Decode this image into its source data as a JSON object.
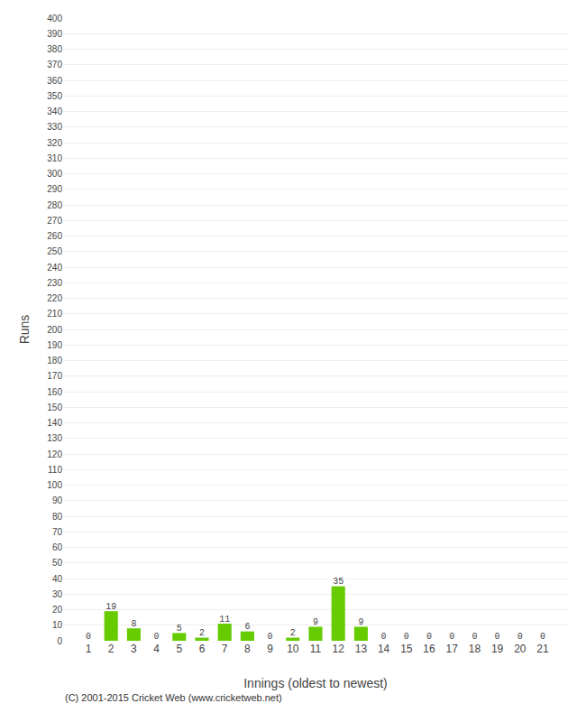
{
  "chart_data": {
    "type": "bar",
    "categories": [
      1,
      2,
      3,
      4,
      5,
      6,
      7,
      8,
      9,
      10,
      11,
      12,
      13,
      14,
      15,
      16,
      17,
      18,
      19,
      20,
      21
    ],
    "values": [
      0,
      19,
      8,
      0,
      5,
      2,
      11,
      6,
      0,
      2,
      9,
      35,
      9,
      0,
      0,
      0,
      0,
      0,
      0,
      0,
      0
    ],
    "color": "#66cc00",
    "xlabel": "Innings (oldest to newest)",
    "ylabel": "Runs",
    "footer": "(C) 2001-2015 Cricket Web (www.cricketweb.net)",
    "ylim": [
      0,
      400
    ],
    "yticks": [
      0,
      10,
      20,
      30,
      40,
      50,
      60,
      70,
      80,
      90,
      100,
      110,
      120,
      130,
      140,
      150,
      160,
      170,
      180,
      190,
      200,
      210,
      220,
      230,
      240,
      250,
      260,
      270,
      280,
      290,
      300,
      310,
      320,
      330,
      340,
      350,
      360,
      370,
      380,
      390,
      400
    ],
    "grid": true,
    "data_labels": true
  }
}
